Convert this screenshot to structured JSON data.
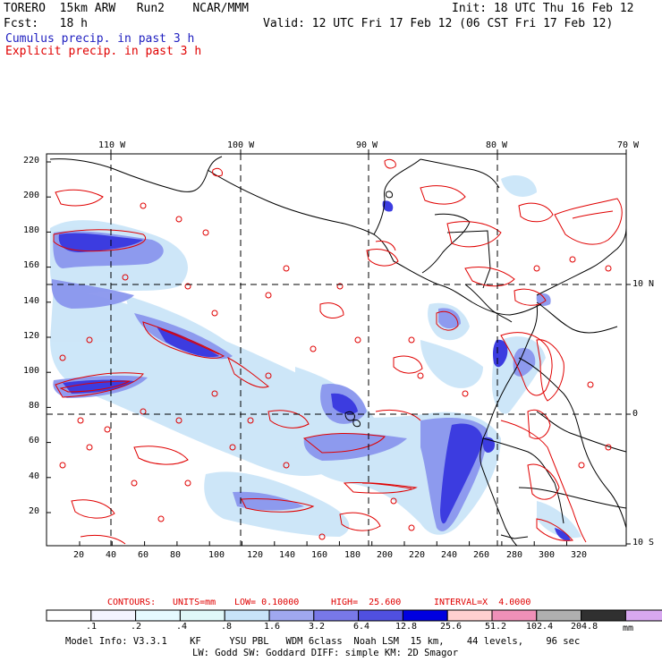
{
  "header": {
    "model": "TORERO  15km ARW   Run2    NCAR/MMM",
    "init": "Init: 18 UTC Thu 16 Feb 12",
    "fcst": "Fcst:   18 h",
    "valid": "Valid: 12 UTC Fri 17 Feb 12 (06 CST Fri 17 Feb 12)",
    "cumulus": "Cumulus precip. in past 3 h",
    "explicit": "Explicit precip. in past 3 h"
  },
  "colors": {
    "cumulus": "#2020c0",
    "explicit_contour": "#e00000",
    "fill_levels": [
      "#ffffff",
      "#f4f4ff",
      "#e6faff",
      "#e0f8f8",
      "#c8e4f8",
      "#a0a8f0",
      "#7878e8",
      "#5050e0",
      "#0000e0",
      "#ffd0d0",
      "#f090b8",
      "#b0b0b0",
      "#303030",
      "#d8a8f0"
    ]
  },
  "map": {
    "top_lon_labels": [
      "110 W",
      "100 W",
      "90 W",
      "80 W",
      "70 W"
    ],
    "right_lat_labels": [
      "10 N",
      "0",
      "10 S"
    ],
    "y_ticks": [
      "220",
      "200",
      "180",
      "160",
      "140",
      "120",
      "100",
      "80",
      "60",
      "40",
      "20"
    ],
    "x_ticks": [
      "20",
      "40",
      "60",
      "80",
      "100",
      "120",
      "140",
      "160",
      "180",
      "200",
      "220",
      "240",
      "260",
      "280",
      "300",
      "320"
    ]
  },
  "contour_info": {
    "contours": "CONTOURS:",
    "units": "UNITS=mm",
    "low": "LOW= 0.10000",
    "high": "HIGH=  25.600",
    "interval": "INTERVAL=X  4.0000"
  },
  "colorbar": {
    "labels": [
      ".1",
      ".2",
      ".4",
      ".8",
      "1.6",
      "3.2",
      "6.4",
      "12.8",
      "25.6",
      "51.2",
      "102.4",
      "204.8"
    ],
    "unit": "mm"
  },
  "model_info": {
    "line1": "Model Info: V3.3.1    KF     YSU PBL   WDM 6class  Noah LSM  15 km,    44 levels,    96 sec",
    "line2": "LW: Godd SW: Goddard DIFF: simple KM: 2D Smagor"
  }
}
